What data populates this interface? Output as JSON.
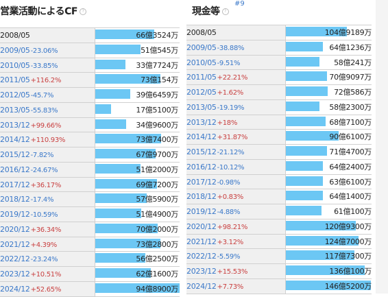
{
  "left_panel": {
    "title": "営業活動によるCF",
    "max": 9489,
    "rows": [
      {
        "period": "2008/05",
        "change": "",
        "dir": "",
        "value": "66億3524万",
        "amount": 6635
      },
      {
        "period": "2009/05",
        "change": "-23.06%",
        "dir": "neg",
        "value": "51億545万",
        "amount": 5105
      },
      {
        "period": "2010/05",
        "change": "-33.85%",
        "dir": "neg",
        "value": "33億7724万",
        "amount": 3377
      },
      {
        "period": "2011/05",
        "change": "+116.2%",
        "dir": "pos",
        "value": "73億154万",
        "amount": 7302
      },
      {
        "period": "2012/05",
        "change": "-45.7%",
        "dir": "neg",
        "value": "39億6459万",
        "amount": 3965
      },
      {
        "period": "2013/05",
        "change": "-55.83%",
        "dir": "neg",
        "value": "17億5100万",
        "amount": 1751
      },
      {
        "period": "2013/12",
        "change": "+99.66%",
        "dir": "pos",
        "value": "34億9600万",
        "amount": 3496
      },
      {
        "period": "2014/12",
        "change": "+110.93%",
        "dir": "pos",
        "value": "73億7400万",
        "amount": 7374
      },
      {
        "period": "2015/12",
        "change": "-7.82%",
        "dir": "neg",
        "value": "67億9700万",
        "amount": 6797
      },
      {
        "period": "2016/12",
        "change": "-24.67%",
        "dir": "neg",
        "value": "51億2000万",
        "amount": 5120
      },
      {
        "period": "2017/12",
        "change": "+36.17%",
        "dir": "pos",
        "value": "69億7200万",
        "amount": 6972
      },
      {
        "period": "2018/12",
        "change": "-17.4%",
        "dir": "neg",
        "value": "57億5900万",
        "amount": 5759
      },
      {
        "period": "2019/12",
        "change": "-10.59%",
        "dir": "neg",
        "value": "51億4900万",
        "amount": 5149
      },
      {
        "period": "2020/12",
        "change": "+36.34%",
        "dir": "pos",
        "value": "70億2000万",
        "amount": 7020
      },
      {
        "period": "2021/12",
        "change": "+4.39%",
        "dir": "pos",
        "value": "73億2800万",
        "amount": 7328
      },
      {
        "period": "2022/12",
        "change": "-23.24%",
        "dir": "neg",
        "value": "56億2500万",
        "amount": 5625
      },
      {
        "period": "2023/12",
        "change": "+10.51%",
        "dir": "pos",
        "value": "62億1600万",
        "amount": 6216
      },
      {
        "period": "2024/12",
        "change": "+52.65%",
        "dir": "pos",
        "value": "94億8900万",
        "amount": 9489
      }
    ]
  },
  "right_panel": {
    "title": "現金等",
    "rank": "#9",
    "max": 14652,
    "rows": [
      {
        "period": "2008/05",
        "change": "",
        "dir": "",
        "value": "104億9189万",
        "amount": 10492
      },
      {
        "period": "2009/05",
        "change": "-38.88%",
        "dir": "neg",
        "value": "64億1236万",
        "amount": 6412
      },
      {
        "period": "2010/05",
        "change": "-9.51%",
        "dir": "neg",
        "value": "58億241万",
        "amount": 5802
      },
      {
        "period": "2011/05",
        "change": "+22.21%",
        "dir": "pos",
        "value": "70億9097万",
        "amount": 7091
      },
      {
        "period": "2012/05",
        "change": "+1.62%",
        "dir": "pos",
        "value": "72億586万",
        "amount": 7206
      },
      {
        "period": "2013/05",
        "change": "-19.19%",
        "dir": "neg",
        "value": "58億2300万",
        "amount": 5823
      },
      {
        "period": "2013/12",
        "change": "+18%",
        "dir": "pos",
        "value": "68億7100万",
        "amount": 6871
      },
      {
        "period": "2014/12",
        "change": "+31.87%",
        "dir": "pos",
        "value": "90億6100万",
        "amount": 9061
      },
      {
        "period": "2015/12",
        "change": "-21.12%",
        "dir": "neg",
        "value": "71億4700万",
        "amount": 7147
      },
      {
        "period": "2016/12",
        "change": "-10.12%",
        "dir": "neg",
        "value": "64億2400万",
        "amount": 6424
      },
      {
        "period": "2017/12",
        "change": "-0.98%",
        "dir": "neg",
        "value": "63億6100万",
        "amount": 6361
      },
      {
        "period": "2018/12",
        "change": "+0.83%",
        "dir": "pos",
        "value": "64億1400万",
        "amount": 6414
      },
      {
        "period": "2019/12",
        "change": "-4.88%",
        "dir": "neg",
        "value": "61億100万",
        "amount": 6101
      },
      {
        "period": "2020/12",
        "change": "+98.21%",
        "dir": "pos",
        "value": "120億9300万",
        "amount": 12093
      },
      {
        "period": "2021/12",
        "change": "+3.12%",
        "dir": "pos",
        "value": "124億7000万",
        "amount": 12470
      },
      {
        "period": "2022/12",
        "change": "-5.59%",
        "dir": "neg",
        "value": "117億7300万",
        "amount": 11773
      },
      {
        "period": "2023/12",
        "change": "+15.53%",
        "dir": "pos",
        "value": "136億100万",
        "amount": 13601
      },
      {
        "period": "2024/12",
        "change": "+7.73%",
        "dir": "pos",
        "value": "146億5200万",
        "amount": 14652
      }
    ]
  }
}
